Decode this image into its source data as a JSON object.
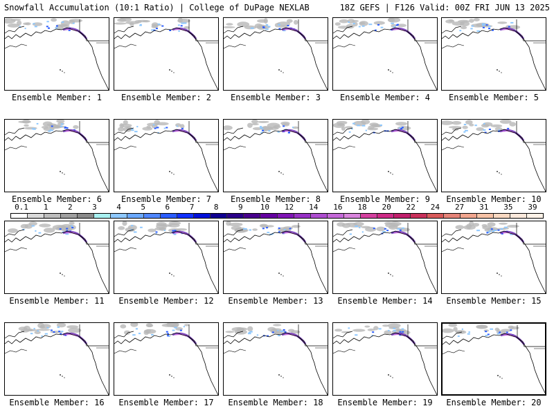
{
  "header": {
    "left": "Snowfall Accumulation (10:1 Ratio) | College of DuPage NEXLAB",
    "right": "18Z GEFS | F126 Valid: 00Z FRI JUN 13 2025"
  },
  "panels": [
    {
      "caption": "Ensemble Member: 1"
    },
    {
      "caption": "Ensemble Member: 2"
    },
    {
      "caption": "Ensemble Member: 3"
    },
    {
      "caption": "Ensemble Member: 4"
    },
    {
      "caption": "Ensemble Member: 5"
    },
    {
      "caption": "Ensemble Member: 6"
    },
    {
      "caption": "Ensemble Member: 7"
    },
    {
      "caption": "Ensemble Member: 8"
    },
    {
      "caption": "Ensemble Member: 9"
    },
    {
      "caption": "Ensemble Member: 10"
    },
    {
      "caption": "Ensemble Member: 11"
    },
    {
      "caption": "Ensemble Member: 12"
    },
    {
      "caption": "Ensemble Member: 13"
    },
    {
      "caption": "Ensemble Member: 14"
    },
    {
      "caption": "Ensemble Member: 15"
    },
    {
      "caption": "Ensemble Member: 16"
    },
    {
      "caption": "Ensemble Member: 17"
    },
    {
      "caption": "Ensemble Member: 18"
    },
    {
      "caption": "Ensemble Member: 19"
    },
    {
      "caption": "Ensemble Member: 20"
    }
  ],
  "colorbar": {
    "labels": [
      "0.1",
      "1",
      "2",
      "3",
      "4",
      "5",
      "6",
      "7",
      "8",
      "9",
      "10",
      "12",
      "14",
      "16",
      "18",
      "20",
      "22",
      "24",
      "27",
      "31",
      "35",
      "39"
    ],
    "colors": [
      "#ffffff",
      "#d9d9d9",
      "#bdbdbd",
      "#a0a0a0",
      "#8a8a8a",
      "#a8f0f0",
      "#8ec8ff",
      "#6aa8ff",
      "#4f86ff",
      "#2a5cff",
      "#1030ff",
      "#0010d8",
      "#100090",
      "#2a0088",
      "#48008c",
      "#6400a0",
      "#7f14b4",
      "#9630c4",
      "#ad4ccf",
      "#c468d8",
      "#d884dc",
      "#d3409e",
      "#cd2a86",
      "#c01f6c",
      "#c8305a",
      "#d85a5a",
      "#e58378",
      "#f0a58e",
      "#f6c2a6",
      "#f9d9c2",
      "#fce9dc",
      "#fff2e8"
    ],
    "snow_colors": {
      "gray": "#b8b8b8",
      "lightblue": "#8ec8ff",
      "blue": "#2a5cff",
      "purple": "#6a2ab4",
      "magenta": "#c468d8"
    }
  }
}
